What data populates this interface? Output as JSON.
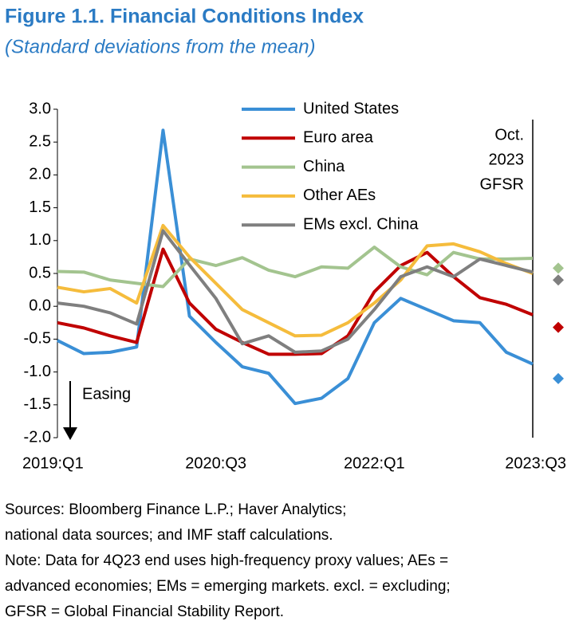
{
  "chart_data": {
    "type": "line",
    "title": "Figure 1.1. Financial Conditions Index",
    "subtitle": "(Standard deviations from the mean)",
    "categories": [
      "2019:Q1",
      null,
      null,
      null,
      null,
      null,
      "2020:Q3",
      null,
      null,
      null,
      null,
      null,
      "2022:Q1",
      null,
      null,
      null,
      null,
      null,
      "2023:Q3"
    ],
    "series": [
      {
        "name": "United States",
        "color": "#3a8fd6",
        "values": [
          -0.52,
          -0.72,
          -0.7,
          -0.62,
          2.68,
          -0.15,
          -0.55,
          -0.92,
          -1.02,
          -1.48,
          -1.4,
          -1.1,
          -0.25,
          0.12,
          -0.05,
          -0.22,
          -0.25,
          -0.7,
          -0.88
        ],
        "gfsr_value": -1.1
      },
      {
        "name": "Euro area",
        "color": "#c00000",
        "values": [
          -0.25,
          -0.33,
          -0.45,
          -0.55,
          0.87,
          0.05,
          -0.35,
          -0.55,
          -0.73,
          -0.73,
          -0.72,
          -0.45,
          0.22,
          0.62,
          0.82,
          0.45,
          0.13,
          0.03,
          -0.13
        ],
        "gfsr_value": -0.32
      },
      {
        "name": "China",
        "color": "#a3c48f",
        "values": [
          0.53,
          0.52,
          0.4,
          0.35,
          0.3,
          0.72,
          0.62,
          0.74,
          0.55,
          0.45,
          0.6,
          0.58,
          0.9,
          0.6,
          0.48,
          0.82,
          0.72,
          0.72,
          0.73
        ],
        "gfsr_value": 0.58
      },
      {
        "name": "Other AEs",
        "color": "#f5bc3c",
        "values": [
          0.29,
          0.22,
          0.27,
          0.05,
          1.23,
          0.75,
          0.35,
          -0.05,
          -0.25,
          -0.45,
          -0.44,
          -0.25,
          0.05,
          0.4,
          0.92,
          0.95,
          0.83,
          0.65,
          0.5
        ]
      },
      {
        "name": "EMs excl. China",
        "color": "#7f7f7f",
        "values": [
          0.05,
          0.0,
          -0.1,
          -0.27,
          1.15,
          0.63,
          0.12,
          -0.57,
          -0.45,
          -0.7,
          -0.68,
          -0.5,
          -0.05,
          0.45,
          0.6,
          0.45,
          0.72,
          0.62,
          0.52
        ],
        "gfsr_value": 0.4
      }
    ],
    "ylim": [
      -2,
      3
    ],
    "yticks": [
      {
        "value": 3,
        "label": "3.0"
      },
      2.5,
      {
        "value": 2,
        "label": "2.0"
      },
      1.5,
      {
        "value": 1,
        "label": "1.0"
      },
      0.5,
      {
        "value": 0,
        "label": "0.0"
      },
      -0.5,
      {
        "value": -1,
        "label": "-1.0"
      },
      -1.5,
      {
        "value": -2,
        "label": "-2.0"
      }
    ],
    "gfsr_label": [
      "Oct.",
      "2023",
      "GFSR"
    ],
    "easing_label": "Easing"
  },
  "footer": [
    "Sources: Bloomberg Finance L.P.; Haver Analytics;",
    "national data sources; and IMF staff calculations.",
    "Note: Data for 4Q23 end uses high-frequency proxy values; AEs =",
    "advanced economies; EMs = emerging markets. excl. = excluding;",
    "GFSR = Global Financial Stability Report."
  ]
}
